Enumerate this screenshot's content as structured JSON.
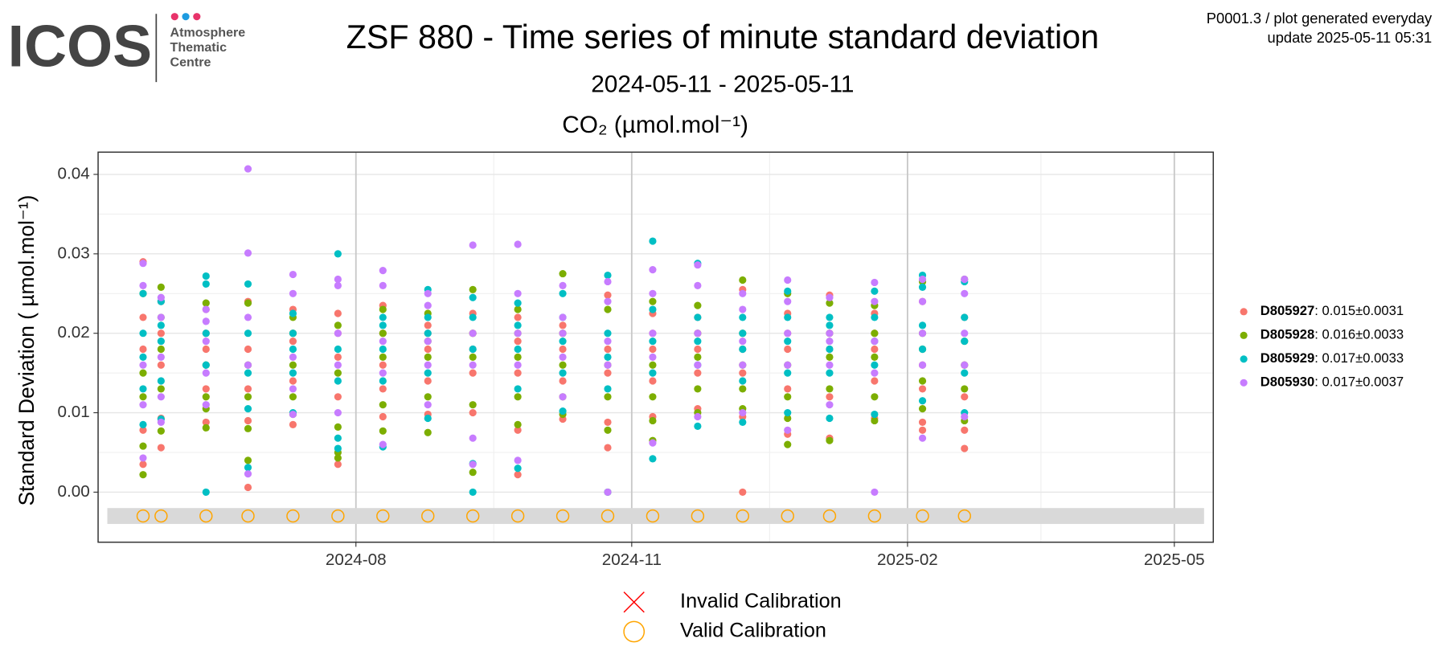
{
  "header": {
    "logo": "ICOS",
    "org": [
      "Atmosphere",
      "Thematic",
      "Centre"
    ],
    "note": "P0001.3 / plot generated everyday",
    "update": "update  2025-05-11 05:31"
  },
  "chart_data": {
    "type": "scatter",
    "title": "ZSF 880 - Time series of minute standard deviation",
    "subtitle": "2024-05-11 - 2025-05-11",
    "panel_title": "CO₂ (µmol.mol⁻¹)",
    "ylabel": "Standard Deviation ( µmol.mol⁻¹)",
    "xlim": [
      "2024-05-07",
      "2025-05-14"
    ],
    "xticks": [
      {
        "value": "2024-08-01",
        "label": "2024-08"
      },
      {
        "value": "2024-11-01",
        "label": "2024-11"
      },
      {
        "value": "2025-02-01",
        "label": "2025-02"
      },
      {
        "value": "2025-05-01",
        "label": "2025-05"
      }
    ],
    "ylim": [
      -0.0063,
      0.0428
    ],
    "yticks": [
      {
        "value": 0,
        "label": "0.00"
      },
      0.01,
      0.02,
      0.03,
      0.04
    ],
    "grid": true,
    "legend": "right",
    "x": [
      "2024-05-22",
      "2024-05-28",
      "2024-06-12",
      "2024-06-26",
      "2024-07-11",
      "2024-07-26",
      "2024-08-10",
      "2024-08-25",
      "2024-09-09",
      "2024-09-24",
      "2024-10-09",
      "2024-10-24",
      "2024-11-08",
      "2024-11-23",
      "2024-12-08",
      "2024-12-23",
      "2025-01-06",
      "2025-01-21",
      "2025-02-06",
      "2025-02-20"
    ],
    "series": [
      {
        "name": "D805927",
        "summary": "0.015±0.0031",
        "color": "#F8766D",
        "values": [
          [
            0.029,
            0.0078,
            0.0035,
            0.018,
            0.022
          ],
          [
            0.0056,
            0.0093,
            0.02,
            0.016,
            0.024
          ],
          [
            0.0088,
            0.023,
            0.013,
            0.018,
            0.02
          ],
          [
            0.0006,
            0.009,
            0.024,
            0.018,
            0.013
          ],
          [
            0.0085,
            0.023,
            0.014,
            0.019,
            0.02
          ],
          [
            0.0035,
            0.0225,
            0.012,
            0.017,
            0.02
          ],
          [
            0.0095,
            0.0235,
            0.016,
            0.02,
            0.013
          ],
          [
            0.0098,
            0.021,
            0.014,
            0.018,
            0.02
          ],
          [
            0.01,
            0.0225,
            0.015,
            0.018,
            0.02
          ],
          [
            0.0022,
            0.0078,
            0.022,
            0.015,
            0.019
          ],
          [
            0.0092,
            0.021,
            0.014,
            0.018,
            0.02
          ],
          [
            0.0056,
            0.0248,
            0.0088,
            0.018,
            0.015
          ],
          [
            0.0095,
            0.0225,
            0.014,
            0.018,
            0.02
          ],
          [
            0.0105,
            0.022,
            0.015,
            0.018,
            0.02
          ],
          [
            0.0,
            0.0255,
            0.0095,
            0.018,
            0.015
          ],
          [
            0.0073,
            0.0225,
            0.013,
            0.018,
            0.02
          ],
          [
            0.0248,
            0.0068,
            0.012,
            0.018,
            0.02
          ],
          [
            0.0093,
            0.0225,
            0.014,
            0.018,
            0.02
          ],
          [
            0.0078,
            0.0088,
            0.024,
            0.016,
            0.013
          ],
          [
            0.0055,
            0.0078,
            0.022,
            0.016,
            0.012
          ]
        ]
      },
      {
        "name": "D805928",
        "summary": "0.016±0.0033",
        "color": "#7CAE00",
        "values": [
          [
            0.0022,
            0.0058,
            0.025,
            0.015,
            0.012
          ],
          [
            0.0258,
            0.0077,
            0.022,
            0.013,
            0.018
          ],
          [
            0.0081,
            0.0105,
            0.0238,
            0.016,
            0.012
          ],
          [
            0.004,
            0.008,
            0.0238,
            0.016,
            0.012
          ],
          [
            0.0098,
            0.022,
            0.016,
            0.012,
            0.02
          ],
          [
            0.0043,
            0.005,
            0.0082,
            0.021,
            0.015
          ],
          [
            0.0077,
            0.023,
            0.011,
            0.017,
            0.02
          ],
          [
            0.0075,
            0.0225,
            0.012,
            0.017,
            0.019
          ],
          [
            0.0025,
            0.0255,
            0.011,
            0.017,
            0.02
          ],
          [
            0.0085,
            0.023,
            0.012,
            0.017,
            0.02
          ],
          [
            0.0275,
            0.0098,
            0.016,
            0.02,
            0.012
          ],
          [
            0.0,
            0.0078,
            0.023,
            0.016,
            0.012
          ],
          [
            0.0065,
            0.009,
            0.024,
            0.016,
            0.012
          ],
          [
            0.01,
            0.0235,
            0.013,
            0.017,
            0.02
          ],
          [
            0.0267,
            0.0105,
            0.016,
            0.02,
            0.013
          ],
          [
            0.006,
            0.0093,
            0.025,
            0.016,
            0.012
          ],
          [
            0.0065,
            0.0238,
            0.013,
            0.017,
            0.02
          ],
          [
            0.009,
            0.0235,
            0.012,
            0.017,
            0.02
          ],
          [
            0.0105,
            0.0265,
            0.014,
            0.018,
            0.02
          ],
          [
            0.0268,
            0.009,
            0.016,
            0.019,
            0.013
          ]
        ]
      },
      {
        "name": "D805929",
        "summary": "0.017±0.0033",
        "color": "#00BFC4",
        "values": [
          [
            0.0085,
            0.025,
            0.02,
            0.013,
            0.017
          ],
          [
            0.0092,
            0.024,
            0.014,
            0.019,
            0.021
          ],
          [
            0.0,
            0.0272,
            0.0262,
            0.016,
            0.02
          ],
          [
            0.0031,
            0.0262,
            0.0105,
            0.02,
            0.015
          ],
          [
            0.01,
            0.0225,
            0.015,
            0.018,
            0.02
          ],
          [
            0.0068,
            0.03,
            0.0055,
            0.018,
            0.014
          ],
          [
            0.0057,
            0.021,
            0.014,
            0.018,
            0.022
          ],
          [
            0.0093,
            0.0255,
            0.015,
            0.02,
            0.022
          ],
          [
            0.0,
            0.0245,
            0.0036,
            0.018,
            0.022
          ],
          [
            0.003,
            0.0238,
            0.013,
            0.018,
            0.021
          ],
          [
            0.0102,
            0.025,
            0.015,
            0.019,
            0.022
          ],
          [
            0.0273,
            0.0,
            0.017,
            0.02,
            0.013
          ],
          [
            0.0316,
            0.0042,
            0.023,
            0.015,
            0.019
          ],
          [
            0.0288,
            0.0083,
            0.016,
            0.019,
            0.022
          ],
          [
            0.0088,
            0.022,
            0.014,
            0.018,
            0.02
          ],
          [
            0.0253,
            0.01,
            0.015,
            0.019,
            0.022
          ],
          [
            0.0093,
            0.022,
            0.015,
            0.018,
            0.021
          ],
          [
            0.0253,
            0.0098,
            0.016,
            0.019,
            0.022
          ],
          [
            0.0273,
            0.0115,
            0.0258,
            0.018,
            0.021
          ],
          [
            0.0265,
            0.01,
            0.015,
            0.019,
            0.022
          ]
        ]
      },
      {
        "name": "D805930",
        "summary": "0.017±0.0037",
        "color": "#C77CFF",
        "values": [
          [
            0.0043,
            0.0288,
            0.026,
            0.016,
            0.011
          ],
          [
            0.0088,
            0.0245,
            0.012,
            0.017,
            0.022
          ],
          [
            0.011,
            0.023,
            0.015,
            0.019,
            0.0215
          ],
          [
            0.0407,
            0.0301,
            0.0023,
            0.022,
            0.016
          ],
          [
            0.0274,
            0.0098,
            0.025,
            0.017,
            0.013
          ],
          [
            0.0268,
            0.01,
            0.026,
            0.016,
            0.02
          ],
          [
            0.0279,
            0.006,
            0.026,
            0.015,
            0.019
          ],
          [
            0.025,
            0.011,
            0.0235,
            0.016,
            0.019
          ],
          [
            0.0311,
            0.0068,
            0.0035,
            0.016,
            0.02
          ],
          [
            0.0312,
            0.004,
            0.025,
            0.016,
            0.02
          ],
          [
            0.026,
            0.012,
            0.022,
            0.017,
            0.02
          ],
          [
            0.0265,
            0.0,
            0.024,
            0.016,
            0.019
          ],
          [
            0.028,
            0.0062,
            0.025,
            0.017,
            0.02
          ],
          [
            0.0286,
            0.0095,
            0.026,
            0.016,
            0.02
          ],
          [
            0.025,
            0.01,
            0.023,
            0.016,
            0.019
          ],
          [
            0.0267,
            0.0078,
            0.024,
            0.016,
            0.02
          ],
          [
            0.0245,
            0.011,
            0.02,
            0.016,
            0.019
          ],
          [
            0.0264,
            0.0,
            0.024,
            0.015,
            0.019
          ],
          [
            0.0268,
            0.0068,
            0.024,
            0.016,
            0.02
          ],
          [
            0.0268,
            0.0095,
            0.025,
            0.016,
            0.02
          ]
        ]
      }
    ],
    "calibration_band": [
      -0.004,
      -0.002
    ],
    "calibrations": [
      {
        "name": "Invalid Calibration",
        "color": "#FF0000",
        "marker": "x",
        "values": [
          null,
          null,
          null,
          null,
          null,
          null,
          null,
          null,
          null,
          null,
          null,
          null,
          null,
          null,
          null,
          null,
          null,
          null,
          null,
          null
        ]
      },
      {
        "name": "Valid Calibration",
        "color": "#FFA500",
        "marker": "circle",
        "values": [
          -0.003,
          -0.003,
          -0.003,
          -0.003,
          -0.003,
          -0.003,
          -0.003,
          -0.003,
          -0.003,
          -0.003,
          -0.003,
          -0.003,
          -0.003,
          -0.003,
          -0.003,
          -0.003,
          -0.003,
          -0.003,
          -0.003,
          -0.003
        ]
      }
    ]
  }
}
